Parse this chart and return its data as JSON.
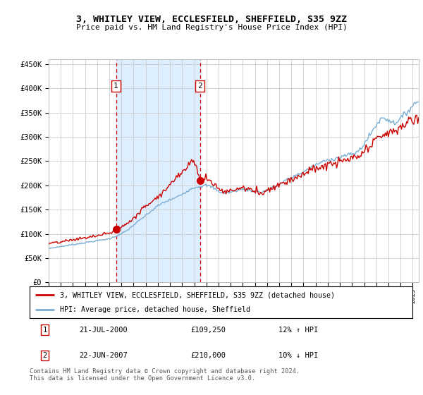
{
  "title": "3, WHITLEY VIEW, ECCLESFIELD, SHEFFIELD, S35 9ZZ",
  "subtitle": "Price paid vs. HM Land Registry's House Price Index (HPI)",
  "ylim": [
    0,
    460000
  ],
  "xlim_start": 1995.0,
  "xlim_end": 2025.5,
  "sale1_x": 2000.55,
  "sale1_y": 109250,
  "sale2_x": 2007.47,
  "sale2_y": 210000,
  "legend_line1": "3, WHITLEY VIEW, ECCLESFIELD, SHEFFIELD, S35 9ZZ (detached house)",
  "legend_line2": "HPI: Average price, detached house, Sheffield",
  "table_row1": [
    "1",
    "21-JUL-2000",
    "£109,250",
    "12% ↑ HPI"
  ],
  "table_row2": [
    "2",
    "22-JUN-2007",
    "£210,000",
    "10% ↓ HPI"
  ],
  "footnote": "Contains HM Land Registry data © Crown copyright and database right 2024.\nThis data is licensed under the Open Government Licence v3.0.",
  "price_line_color": "#cc0000",
  "hpi_line_color": "#7bafd4",
  "sale_marker_color": "#cc0000",
  "vline_color": "#cc0000",
  "shade_color": "#ddeeff",
  "grid_color": "#cccccc",
  "background_color": "#ffffff"
}
